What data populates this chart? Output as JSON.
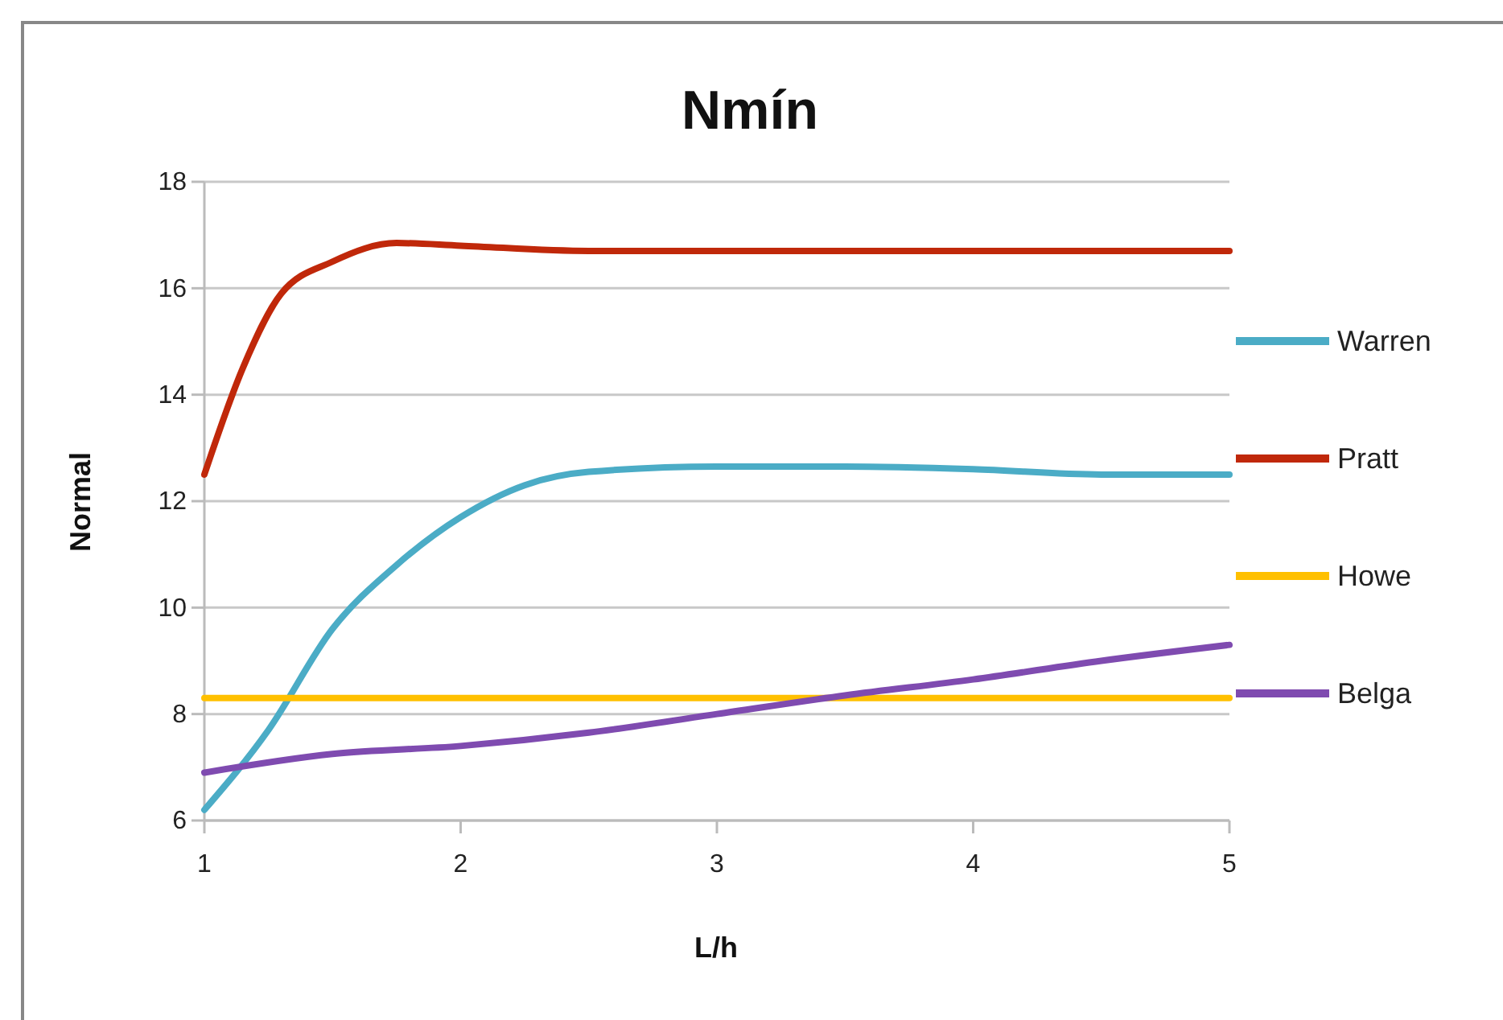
{
  "chart_data": {
    "type": "line",
    "title": "Nmín",
    "xlabel": "L/h",
    "ylabel": "Normal",
    "xlim": [
      1,
      5
    ],
    "xticks": [
      1,
      2,
      3,
      4,
      5
    ],
    "ylim": [
      6,
      18
    ],
    "yticks": [
      6,
      8,
      10,
      12,
      14,
      16,
      18
    ],
    "grid": "y",
    "legend": "right",
    "line_style": "solid",
    "marker": "none",
    "series": [
      {
        "name": "Warren",
        "color": "#4bacc6",
        "x": [
          1,
          1.25,
          1.5,
          1.75,
          2,
          2.25,
          2.5,
          3,
          3.5,
          4,
          4.5,
          5
        ],
        "values": [
          6.2,
          7.7,
          9.6,
          10.8,
          11.7,
          12.3,
          12.55,
          12.65,
          12.65,
          12.6,
          12.5,
          12.5
        ]
      },
      {
        "name": "Pratt",
        "color": "#c0280a",
        "x": [
          1,
          1.15,
          1.3,
          1.5,
          1.75,
          2,
          2.5,
          3,
          4,
          5
        ],
        "values": [
          12.5,
          14.5,
          15.9,
          16.5,
          16.85,
          16.8,
          16.7,
          16.7,
          16.7,
          16.7
        ]
      },
      {
        "name": "Howe",
        "color": "#ffc000",
        "x": [
          1,
          5
        ],
        "values": [
          8.3,
          8.3
        ]
      },
      {
        "name": "Belga",
        "color": "#7f4bb0",
        "x": [
          1,
          1.5,
          2,
          2.5,
          3,
          3.5,
          4,
          4.5,
          5
        ],
        "values": [
          6.9,
          7.25,
          7.4,
          7.65,
          8.0,
          8.35,
          8.65,
          9.0,
          9.3
        ]
      }
    ]
  }
}
